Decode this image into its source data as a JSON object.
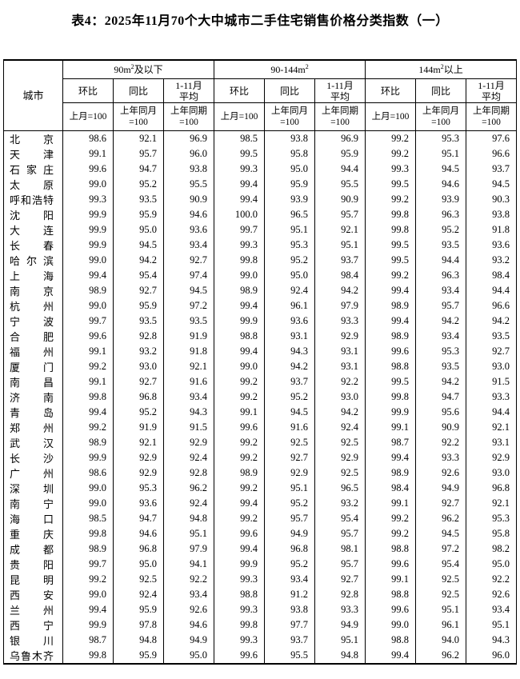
{
  "title": "表4：2025年11月70个大中城市二手住宅销售价格分类指数（一）",
  "table": {
    "city_header": "城市",
    "groups": [
      {
        "pre": "90m",
        "sup": "2",
        "post": "及以下"
      },
      {
        "pre": "90-144m",
        "sup": "2",
        "post": ""
      },
      {
        "pre": "144m",
        "sup": "2",
        "post": "以上"
      }
    ],
    "metric_headers": [
      {
        "line1": "环比",
        "line2": ""
      },
      {
        "line1": "同比",
        "line2": ""
      },
      {
        "line1": "1-11月",
        "line2": "平均"
      }
    ],
    "base_headers": [
      {
        "line1": "上月=100",
        "line2": ""
      },
      {
        "line1": "上年同月",
        "line2": "=100"
      },
      {
        "line1": "上年同期",
        "line2": "=100"
      }
    ],
    "rows": [
      {
        "city": "北京",
        "values": [
          "98.6",
          "92.1",
          "96.9",
          "98.5",
          "93.8",
          "96.9",
          "99.2",
          "95.3",
          "97.6"
        ]
      },
      {
        "city": "天津",
        "values": [
          "99.1",
          "95.7",
          "96.0",
          "99.5",
          "95.8",
          "95.9",
          "99.2",
          "95.1",
          "96.6"
        ]
      },
      {
        "city": "石家庄",
        "values": [
          "99.6",
          "94.7",
          "93.8",
          "99.3",
          "95.0",
          "94.4",
          "99.3",
          "94.5",
          "93.7"
        ]
      },
      {
        "city": "太原",
        "values": [
          "99.0",
          "95.2",
          "95.5",
          "99.4",
          "95.9",
          "95.5",
          "99.5",
          "94.6",
          "94.5"
        ]
      },
      {
        "city": "呼和浩特",
        "values": [
          "99.3",
          "93.5",
          "90.9",
          "99.4",
          "93.9",
          "90.9",
          "99.2",
          "93.9",
          "90.3"
        ]
      },
      {
        "city": "沈阳",
        "values": [
          "99.9",
          "95.9",
          "94.6",
          "100.0",
          "96.5",
          "95.7",
          "99.8",
          "96.3",
          "93.8"
        ]
      },
      {
        "city": "大连",
        "values": [
          "99.9",
          "95.0",
          "93.6",
          "99.7",
          "95.1",
          "92.1",
          "99.8",
          "95.2",
          "91.8"
        ]
      },
      {
        "city": "长春",
        "values": [
          "99.9",
          "94.5",
          "93.4",
          "99.3",
          "95.3",
          "95.1",
          "99.5",
          "93.5",
          "93.6"
        ]
      },
      {
        "city": "哈尔滨",
        "values": [
          "99.0",
          "94.2",
          "92.7",
          "99.8",
          "95.2",
          "93.7",
          "99.5",
          "94.4",
          "93.2"
        ]
      },
      {
        "city": "上海",
        "values": [
          "99.4",
          "95.4",
          "97.4",
          "99.0",
          "95.0",
          "98.4",
          "99.2",
          "96.3",
          "98.4"
        ]
      },
      {
        "city": "南京",
        "values": [
          "98.9",
          "92.7",
          "94.5",
          "98.9",
          "92.4",
          "94.2",
          "99.4",
          "93.4",
          "94.4"
        ]
      },
      {
        "city": "杭州",
        "values": [
          "99.0",
          "95.9",
          "97.2",
          "99.4",
          "96.1",
          "97.9",
          "98.9",
          "95.7",
          "96.6"
        ]
      },
      {
        "city": "宁波",
        "values": [
          "99.7",
          "93.5",
          "93.5",
          "99.9",
          "93.6",
          "93.3",
          "99.4",
          "94.2",
          "94.2"
        ]
      },
      {
        "city": "合肥",
        "values": [
          "99.6",
          "92.8",
          "91.9",
          "98.8",
          "93.1",
          "92.9",
          "98.9",
          "93.4",
          "93.5"
        ]
      },
      {
        "city": "福州",
        "values": [
          "99.1",
          "93.2",
          "91.8",
          "99.4",
          "94.3",
          "93.1",
          "99.6",
          "95.3",
          "92.7"
        ]
      },
      {
        "city": "厦门",
        "values": [
          "99.2",
          "93.0",
          "92.1",
          "99.0",
          "94.2",
          "93.1",
          "98.8",
          "93.5",
          "93.0"
        ]
      },
      {
        "city": "南昌",
        "values": [
          "99.1",
          "92.7",
          "91.6",
          "99.2",
          "93.7",
          "92.2",
          "99.5",
          "94.2",
          "91.5"
        ]
      },
      {
        "city": "济南",
        "values": [
          "99.8",
          "96.8",
          "93.4",
          "99.2",
          "95.2",
          "93.0",
          "99.8",
          "94.7",
          "93.3"
        ]
      },
      {
        "city": "青岛",
        "values": [
          "99.4",
          "95.2",
          "94.3",
          "99.1",
          "94.5",
          "94.2",
          "99.9",
          "95.6",
          "94.4"
        ]
      },
      {
        "city": "郑州",
        "values": [
          "99.2",
          "91.9",
          "91.5",
          "99.6",
          "91.6",
          "92.4",
          "99.1",
          "90.9",
          "92.1"
        ]
      },
      {
        "city": "武汉",
        "values": [
          "98.9",
          "92.1",
          "92.9",
          "99.2",
          "92.5",
          "92.5",
          "98.7",
          "92.2",
          "93.1"
        ]
      },
      {
        "city": "长沙",
        "values": [
          "99.9",
          "92.9",
          "92.4",
          "99.2",
          "92.7",
          "92.9",
          "99.4",
          "93.3",
          "92.9"
        ]
      },
      {
        "city": "广州",
        "values": [
          "98.6",
          "92.9",
          "92.8",
          "98.9",
          "92.9",
          "92.5",
          "98.9",
          "92.6",
          "93.0"
        ]
      },
      {
        "city": "深圳",
        "values": [
          "99.0",
          "95.3",
          "96.2",
          "99.2",
          "95.1",
          "96.5",
          "98.4",
          "94.9",
          "96.8"
        ]
      },
      {
        "city": "南宁",
        "values": [
          "99.0",
          "93.6",
          "92.4",
          "99.4",
          "95.2",
          "93.2",
          "99.1",
          "92.7",
          "92.1"
        ]
      },
      {
        "city": "海口",
        "values": [
          "98.5",
          "94.7",
          "94.8",
          "99.2",
          "95.7",
          "95.4",
          "99.2",
          "96.2",
          "95.3"
        ]
      },
      {
        "city": "重庆",
        "values": [
          "99.8",
          "94.6",
          "95.1",
          "99.6",
          "94.9",
          "95.7",
          "99.2",
          "94.5",
          "95.8"
        ]
      },
      {
        "city": "成都",
        "values": [
          "98.9",
          "96.8",
          "97.9",
          "99.4",
          "96.8",
          "98.1",
          "98.8",
          "97.2",
          "98.2"
        ]
      },
      {
        "city": "贵阳",
        "values": [
          "99.7",
          "95.0",
          "94.1",
          "99.9",
          "95.2",
          "95.7",
          "99.6",
          "95.4",
          "95.0"
        ]
      },
      {
        "city": "昆明",
        "values": [
          "99.2",
          "92.5",
          "92.2",
          "99.3",
          "93.4",
          "92.7",
          "99.1",
          "92.5",
          "92.2"
        ]
      },
      {
        "city": "西安",
        "values": [
          "99.0",
          "92.4",
          "93.4",
          "98.8",
          "91.2",
          "92.8",
          "98.8",
          "92.5",
          "92.6"
        ]
      },
      {
        "city": "兰州",
        "values": [
          "99.4",
          "95.9",
          "92.6",
          "99.3",
          "93.8",
          "93.3",
          "99.6",
          "95.1",
          "93.4"
        ]
      },
      {
        "city": "西宁",
        "values": [
          "99.9",
          "97.8",
          "94.6",
          "99.8",
          "97.7",
          "94.9",
          "99.0",
          "96.1",
          "95.1"
        ]
      },
      {
        "city": "银川",
        "values": [
          "98.7",
          "94.8",
          "94.9",
          "99.3",
          "93.7",
          "95.1",
          "98.8",
          "94.0",
          "94.3"
        ]
      },
      {
        "city": "乌鲁木齐",
        "values": [
          "99.8",
          "95.9",
          "95.0",
          "99.6",
          "95.5",
          "94.8",
          "99.4",
          "96.2",
          "96.0"
        ]
      }
    ]
  }
}
